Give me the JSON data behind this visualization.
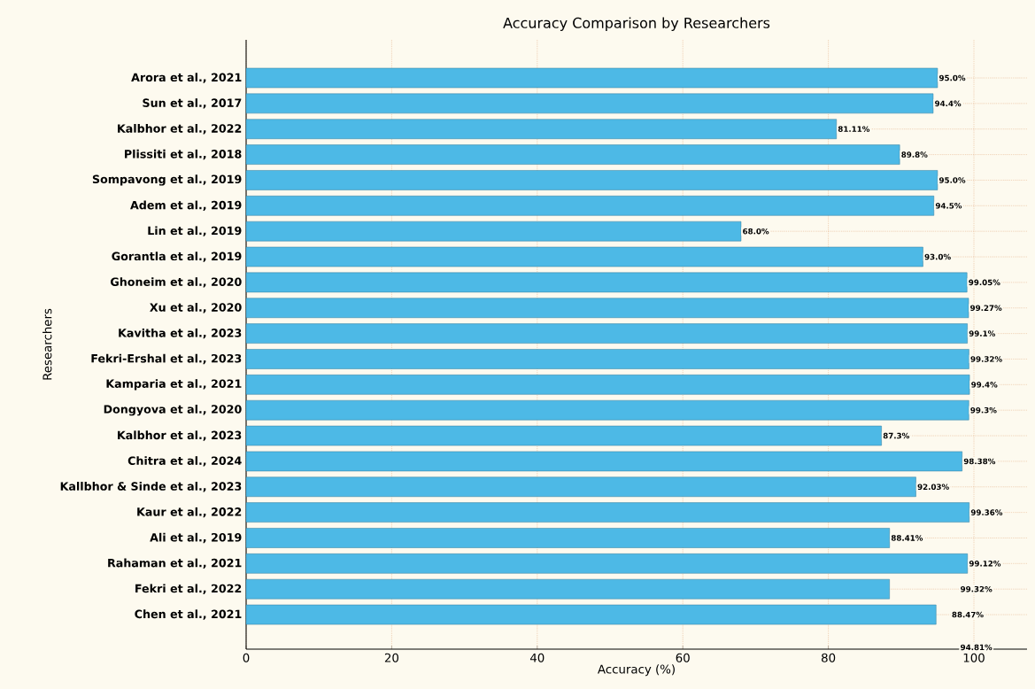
{
  "chart_data": {
    "type": "bar",
    "orientation": "horizontal",
    "title": "Accuracy Comparison by Researchers",
    "xlabel": "Accuracy (%)",
    "ylabel": "Researchers",
    "categories": [
      "Arora et al., 2021",
      "Sun et al., 2017",
      "Kalbhor et al., 2022",
      "Plissiti et al., 2018",
      "Sompavong et al., 2019",
      "Adem et al., 2019",
      "Lin et al., 2019",
      "Gorantla et al., 2019",
      "Ghoneim et al., 2020",
      "Xu et al., 2020",
      "Kavitha et al., 2023",
      "Fekri-Ershal et al., 2023",
      "Kamparia et al., 2021",
      "Dongyova et al., 2020",
      "Kalbhor et al., 2023",
      "Chitra et al., 2024",
      "Kallbhor & Sinde et al., 2023",
      "Kaur et al., 2022",
      "Ali et al., 2019",
      "Rahaman et al., 2021",
      "Fekri et al., 2022",
      "Chen et al., 2021"
    ],
    "values": [
      95.0,
      94.4,
      81.11,
      89.8,
      95.0,
      94.5,
      68.0,
      93.0,
      99.05,
      99.27,
      99.1,
      99.32,
      99.4,
      99.3,
      87.3,
      98.38,
      92.03,
      99.36,
      88.41,
      99.12,
      88.4,
      94.8
    ],
    "value_labels": [
      "95.0%",
      "94.4%",
      "81.11%",
      "89.8%",
      "95.0%",
      "94.5%",
      "68.0%",
      "93.0%",
      "99.05%",
      "99.27%",
      "99.1%",
      "99.32%",
      "99.4%",
      "99.3%",
      "87.3%",
      "98.38%",
      "92.03%",
      "99.36%",
      "88.41%",
      "99.12%",
      null,
      null
    ],
    "annotations": [
      "99.32%",
      "88.47%",
      "94.81%"
    ],
    "color": "#4db9e6",
    "xlim": [
      0,
      107.3
    ],
    "xticks": [
      0,
      20,
      40,
      60,
      80,
      100
    ],
    "grid": true
  }
}
